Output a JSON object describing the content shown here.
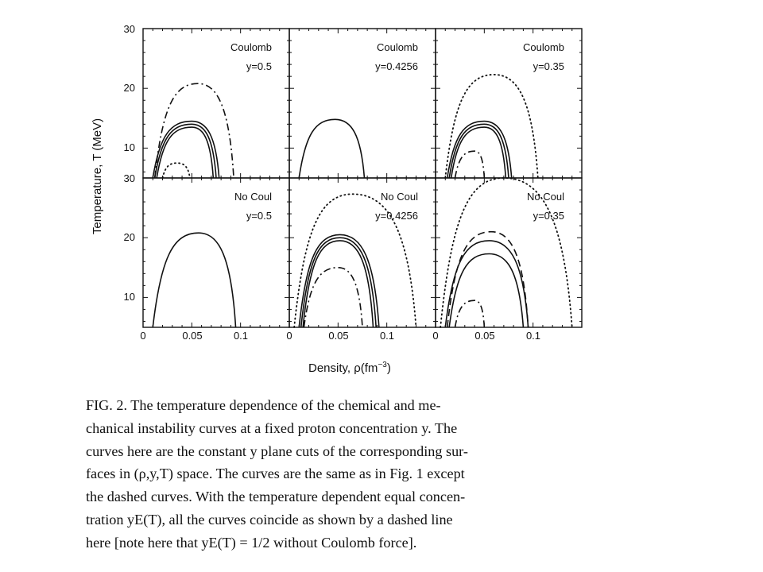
{
  "figure": {
    "y_axis_label": "Temperature, T (MeV)",
    "x_axis_label": "Density, ρ(fm",
    "x_axis_label_sup": "−3",
    "x_axis_label_close": ")",
    "top_row_y_ticks": [
      "30",
      "20",
      "10"
    ],
    "bottom_row_y_ticks": [
      "30",
      "20",
      "10"
    ],
    "x_ticks": [
      "0",
      "0.05",
      "0.1"
    ],
    "panels": [
      {
        "id": "coulomb-y05",
        "label": "Coulomb",
        "y_value": "y=0.5"
      },
      {
        "id": "coulomb-y04256",
        "label": "Coulomb",
        "y_value": "y=0.4256"
      },
      {
        "id": "coulomb-y035",
        "label": "Coulomb",
        "y_value": "y=0.35"
      },
      {
        "id": "nocoul-y05",
        "label": "No Coul",
        "y_value": "y=0.5"
      },
      {
        "id": "nocoul-y04256",
        "label": "No Coul",
        "y_value": "y=0.4256"
      },
      {
        "id": "nocoul-y035",
        "label": "No Coul",
        "y_value": "y=0.35"
      }
    ]
  },
  "chart_data": [
    {
      "type": "line",
      "panel": "Coulomb y=0.5",
      "xlim": [
        0,
        0.15
      ],
      "ylim": [
        5,
        30
      ],
      "series": [
        {
          "style": "solid",
          "points": [
            [
              0.01,
              5
            ],
            [
              0.05,
              14.5
            ],
            [
              0.078,
              5
            ]
          ]
        },
        {
          "style": "solid",
          "points": [
            [
              0.012,
              5
            ],
            [
              0.05,
              14
            ],
            [
              0.075,
              5
            ]
          ]
        },
        {
          "style": "solid",
          "points": [
            [
              0.014,
              5
            ],
            [
              0.05,
              13.5
            ],
            [
              0.072,
              5
            ]
          ]
        },
        {
          "style": "dash-dot",
          "points": [
            [
              0.012,
              5
            ],
            [
              0.056,
              20.8
            ],
            [
              0.093,
              5
            ]
          ]
        },
        {
          "style": "dotted",
          "points": [
            [
              0.02,
              5
            ],
            [
              0.035,
              7.5
            ],
            [
              0.048,
              5
            ]
          ]
        }
      ]
    },
    {
      "type": "line",
      "panel": "Coulomb y=0.4256",
      "xlim": [
        0,
        0.15
      ],
      "ylim": [
        5,
        30
      ],
      "series": [
        {
          "style": "solid",
          "points": [
            [
              0.01,
              5
            ],
            [
              0.047,
              14.8
            ],
            [
              0.077,
              5
            ]
          ]
        }
      ]
    },
    {
      "type": "line",
      "panel": "Coulomb y=0.35",
      "xlim": [
        0,
        0.15
      ],
      "ylim": [
        5,
        30
      ],
      "series": [
        {
          "style": "solid",
          "points": [
            [
              0.012,
              5
            ],
            [
              0.05,
              14.5
            ],
            [
              0.078,
              5
            ]
          ]
        },
        {
          "style": "solid",
          "points": [
            [
              0.014,
              5
            ],
            [
              0.05,
              14
            ],
            [
              0.075,
              5
            ]
          ]
        },
        {
          "style": "solid",
          "points": [
            [
              0.016,
              5
            ],
            [
              0.05,
              13.5
            ],
            [
              0.072,
              5
            ]
          ]
        },
        {
          "style": "dotted",
          "points": [
            [
              0.01,
              5
            ],
            [
              0.06,
              22.3
            ],
            [
              0.105,
              5
            ]
          ]
        },
        {
          "style": "dash-dot",
          "points": [
            [
              0.02,
              5
            ],
            [
              0.04,
              9.5
            ],
            [
              0.05,
              5
            ]
          ]
        }
      ]
    },
    {
      "type": "line",
      "panel": "No Coul y=0.5",
      "xlim": [
        0,
        0.15
      ],
      "ylim": [
        5,
        30
      ],
      "series": [
        {
          "style": "solid",
          "points": [
            [
              0.01,
              5
            ],
            [
              0.057,
              20.8
            ],
            [
              0.095,
              5
            ]
          ]
        }
      ]
    },
    {
      "type": "line",
      "panel": "No Coul y=0.4256",
      "xlim": [
        0,
        0.15
      ],
      "ylim": [
        5,
        30
      ],
      "series": [
        {
          "style": "solid",
          "points": [
            [
              0.01,
              5
            ],
            [
              0.052,
              20.5
            ],
            [
              0.092,
              5
            ]
          ]
        },
        {
          "style": "solid",
          "points": [
            [
              0.012,
              5
            ],
            [
              0.052,
              20
            ],
            [
              0.089,
              5
            ]
          ]
        },
        {
          "style": "solid",
          "points": [
            [
              0.014,
              5
            ],
            [
              0.052,
              19.5
            ],
            [
              0.086,
              5
            ]
          ]
        },
        {
          "style": "dotted",
          "points": [
            [
              0.005,
              5
            ],
            [
              0.065,
              27.3
            ],
            [
              0.13,
              5
            ]
          ]
        },
        {
          "style": "dash-dot",
          "points": [
            [
              0.015,
              5
            ],
            [
              0.05,
              15
            ],
            [
              0.075,
              5
            ]
          ]
        }
      ]
    },
    {
      "type": "line",
      "panel": "No Coul y=0.35",
      "xlim": [
        0,
        0.15
      ],
      "ylim": [
        5,
        30
      ],
      "series": [
        {
          "style": "solid",
          "points": [
            [
              0.01,
              5
            ],
            [
              0.055,
              19.5
            ],
            [
              0.095,
              5
            ]
          ]
        },
        {
          "style": "solid",
          "points": [
            [
              0.014,
              5
            ],
            [
              0.055,
              17.3
            ],
            [
              0.09,
              5
            ]
          ]
        },
        {
          "style": "dashed",
          "points": [
            [
              0.012,
              5
            ],
            [
              0.057,
              21
            ],
            [
              0.095,
              5
            ]
          ]
        },
        {
          "style": "dotted",
          "points": [
            [
              0.005,
              5
            ],
            [
              0.07,
              30
            ],
            [
              0.14,
              5
            ]
          ]
        },
        {
          "style": "dash-dot",
          "points": [
            [
              0.02,
              5
            ],
            [
              0.04,
              9.5
            ],
            [
              0.05,
              5
            ]
          ]
        }
      ]
    }
  ],
  "caption": {
    "lines": [
      "FIG. 2. The temperature dependence of the chemical and me-",
      "chanical instability curves at a fixed proton concentration y. The",
      "curves here are the constant y plane cuts of the corresponding sur-",
      "faces in (ρ,y,T) space. The curves are the same as in Fig. 1 except",
      "the dashed curves. With the temperature dependent equal concen-",
      "tration yE(T), all the curves coincide as shown by a dashed line",
      "here [note here that yE(T) = 1/2 without Coulomb force]."
    ]
  }
}
